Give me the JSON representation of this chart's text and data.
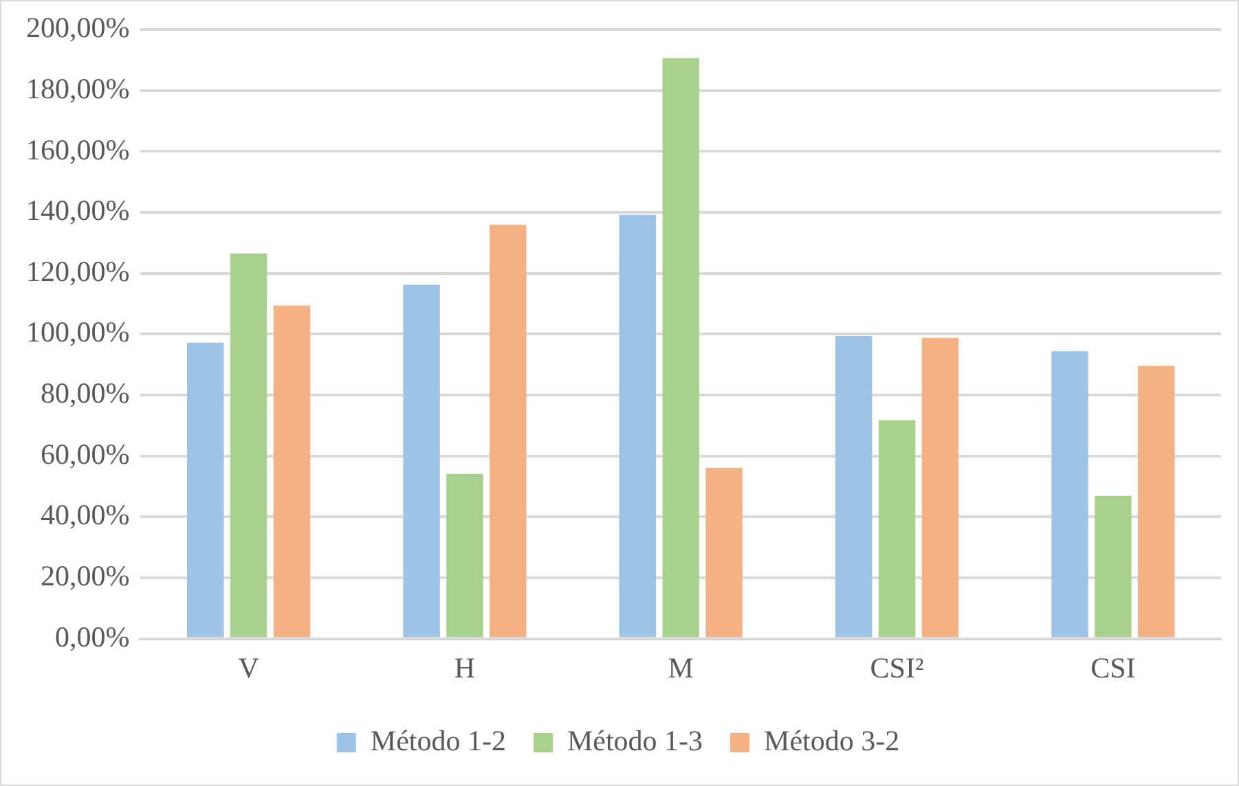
{
  "chart_data": {
    "type": "bar",
    "categories": [
      "V",
      "H",
      "M",
      "CSI²",
      "CSI"
    ],
    "series": [
      {
        "name": "Método 1-2",
        "color": "#9dc3e6",
        "values": [
          97.2,
          116.2,
          139.2,
          99.4,
          94.4
        ]
      },
      {
        "name": "Método 1-3",
        "color": "#a9d18e",
        "values": [
          126.5,
          54.1,
          190.7,
          71.7,
          46.9
        ]
      },
      {
        "name": "Método 3-2",
        "color": "#f4b183",
        "values": [
          109.4,
          135.9,
          56.1,
          98.8,
          89.6
        ]
      }
    ],
    "ylim": [
      0,
      200
    ],
    "yticks": [
      {
        "value": 0,
        "label": "0,00%"
      },
      {
        "value": 20,
        "label": "20,00%"
      },
      {
        "value": 40,
        "label": "40,00%"
      },
      {
        "value": 60,
        "label": "60,00%"
      },
      {
        "value": 80,
        "label": "80,00%"
      },
      {
        "value": 100,
        "label": "100,00%"
      },
      {
        "value": 120,
        "label": "120,00%"
      },
      {
        "value": 140,
        "label": "140,00%"
      },
      {
        "value": 160,
        "label": "160,00%"
      },
      {
        "value": 180,
        "label": "180,00%"
      },
      {
        "value": 200,
        "label": "200,00%"
      }
    ],
    "grid": "y",
    "legend": "bottom"
  }
}
